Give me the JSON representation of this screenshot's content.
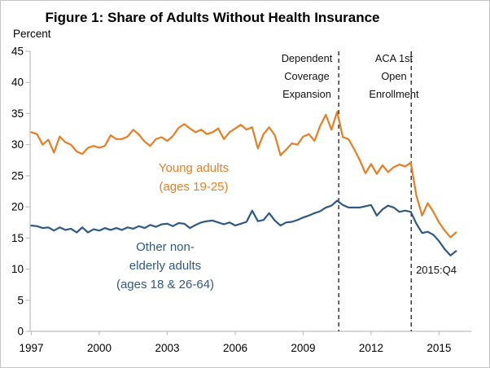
{
  "figure": {
    "title": "Figure 1: Share of Adults Without Health Insurance",
    "y_axis_label": "Percent"
  },
  "annotations": {
    "event1_lines": [
      "Dependent",
      "Coverage",
      "Expansion"
    ],
    "event2_lines": [
      "ACA 1st",
      "Open",
      "Enrollment"
    ],
    "young_label_lines": [
      "Young adults",
      "(ages 19-25)"
    ],
    "other_label_lines": [
      "Other non-",
      "elderly adults",
      "(ages 18 & 26-64)"
    ],
    "end_point_label": "2015:Q4"
  },
  "colors": {
    "young_series": "#e87d22",
    "other_series": "#2e5984",
    "axis": "#bfbfbf",
    "tick_label": "#000000",
    "event_line": "#1a1a1a"
  },
  "chart_data": {
    "type": "line",
    "title": "Figure 1: Share of Adults Without Health Insurance",
    "xlabel": "",
    "ylabel": "Percent",
    "ylim": [
      0,
      45
    ],
    "y_ticks": [
      0,
      5,
      10,
      15,
      20,
      25,
      30,
      35,
      40,
      45
    ],
    "x_tick_years": [
      1997,
      2000,
      2003,
      2006,
      2009,
      2012,
      2015
    ],
    "x_start_year": 1997,
    "x_quarter_step": 0.25,
    "x_end_year": 2015.75,
    "grid": false,
    "legend_position": "inline-labels",
    "frequency": "quarterly",
    "series": [
      {
        "name": "Young adults (ages 19-25)",
        "color": "#e87d22",
        "values": [
          32.0,
          31.7,
          30.0,
          30.8,
          28.7,
          31.3,
          30.4,
          30.0,
          28.9,
          28.5,
          29.5,
          29.8,
          29.5,
          29.8,
          31.5,
          30.9,
          30.9,
          31.3,
          32.4,
          31.6,
          30.5,
          29.8,
          30.9,
          31.2,
          30.6,
          31.4,
          32.7,
          33.3,
          32.6,
          32.0,
          32.4,
          31.7,
          32.0,
          32.6,
          30.9,
          32.0,
          32.6,
          33.2,
          32.4,
          32.8,
          29.4,
          31.7,
          32.8,
          31.5,
          28.3,
          29.2,
          30.2,
          30.0,
          31.3,
          31.7,
          30.6,
          33.0,
          34.8,
          32.4,
          35.3,
          31.2,
          30.9,
          29.3,
          27.5,
          25.4,
          26.9,
          25.3,
          26.7,
          25.6,
          26.4,
          26.8,
          26.5,
          27.1,
          21.8,
          18.6,
          20.6,
          19.2,
          17.5,
          16.2,
          15.1,
          15.9
        ]
      },
      {
        "name": "Other non-elderly adults (ages 18 & 26-64)",
        "color": "#2e5984",
        "values": [
          17.0,
          16.9,
          16.6,
          16.7,
          16.2,
          16.7,
          16.3,
          16.5,
          15.9,
          16.7,
          15.9,
          16.4,
          16.2,
          16.6,
          16.3,
          16.6,
          16.3,
          16.7,
          16.5,
          16.9,
          16.6,
          17.1,
          16.8,
          17.2,
          17.3,
          16.9,
          17.4,
          17.3,
          16.6,
          17.1,
          17.5,
          17.7,
          17.8,
          17.5,
          17.2,
          17.5,
          17.0,
          17.3,
          17.6,
          19.4,
          17.7,
          17.9,
          19.0,
          17.8,
          17.0,
          17.5,
          17.6,
          17.9,
          18.3,
          18.6,
          19.0,
          19.3,
          19.9,
          20.2,
          21.0,
          20.3,
          19.9,
          19.9,
          19.9,
          20.1,
          20.3,
          18.6,
          19.6,
          20.2,
          19.9,
          19.2,
          19.4,
          19.2,
          17.3,
          15.8,
          16.0,
          15.5,
          14.5,
          13.2,
          12.2,
          12.9
        ]
      }
    ],
    "event_lines": [
      {
        "label": "Dependent Coverage Expansion",
        "year": 2010.57
      },
      {
        "label": "ACA 1st Open Enrollment",
        "year": 2013.77
      }
    ],
    "end_annotation": {
      "label": "2015:Q4",
      "year_position": 2015.75
    }
  }
}
